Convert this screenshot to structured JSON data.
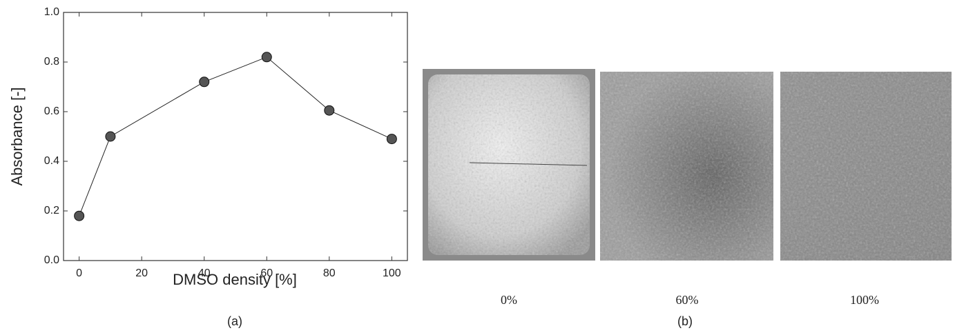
{
  "chart_data": {
    "type": "line",
    "x_label": "DMSO density [%]",
    "y_label": "Absorbance [-]",
    "caption": "(a)",
    "x": [
      0,
      10,
      40,
      60,
      80,
      100
    ],
    "values": [
      0.18,
      0.5,
      0.72,
      0.82,
      0.605,
      0.49
    ],
    "color": "#555555",
    "xlim": [
      -5,
      105
    ],
    "xticks": [
      0,
      20,
      40,
      60,
      80,
      100
    ],
    "ylim": [
      0,
      1
    ],
    "yticks": [
      {
        "value": 0,
        "label": "0.0"
      },
      0.2,
      0.4,
      0.6,
      0.8,
      {
        "value": 1,
        "label": "1.0"
      }
    ]
  },
  "panel_b": {
    "labels": [
      "0%",
      "60%",
      "100%"
    ],
    "caption": "(b)"
  }
}
